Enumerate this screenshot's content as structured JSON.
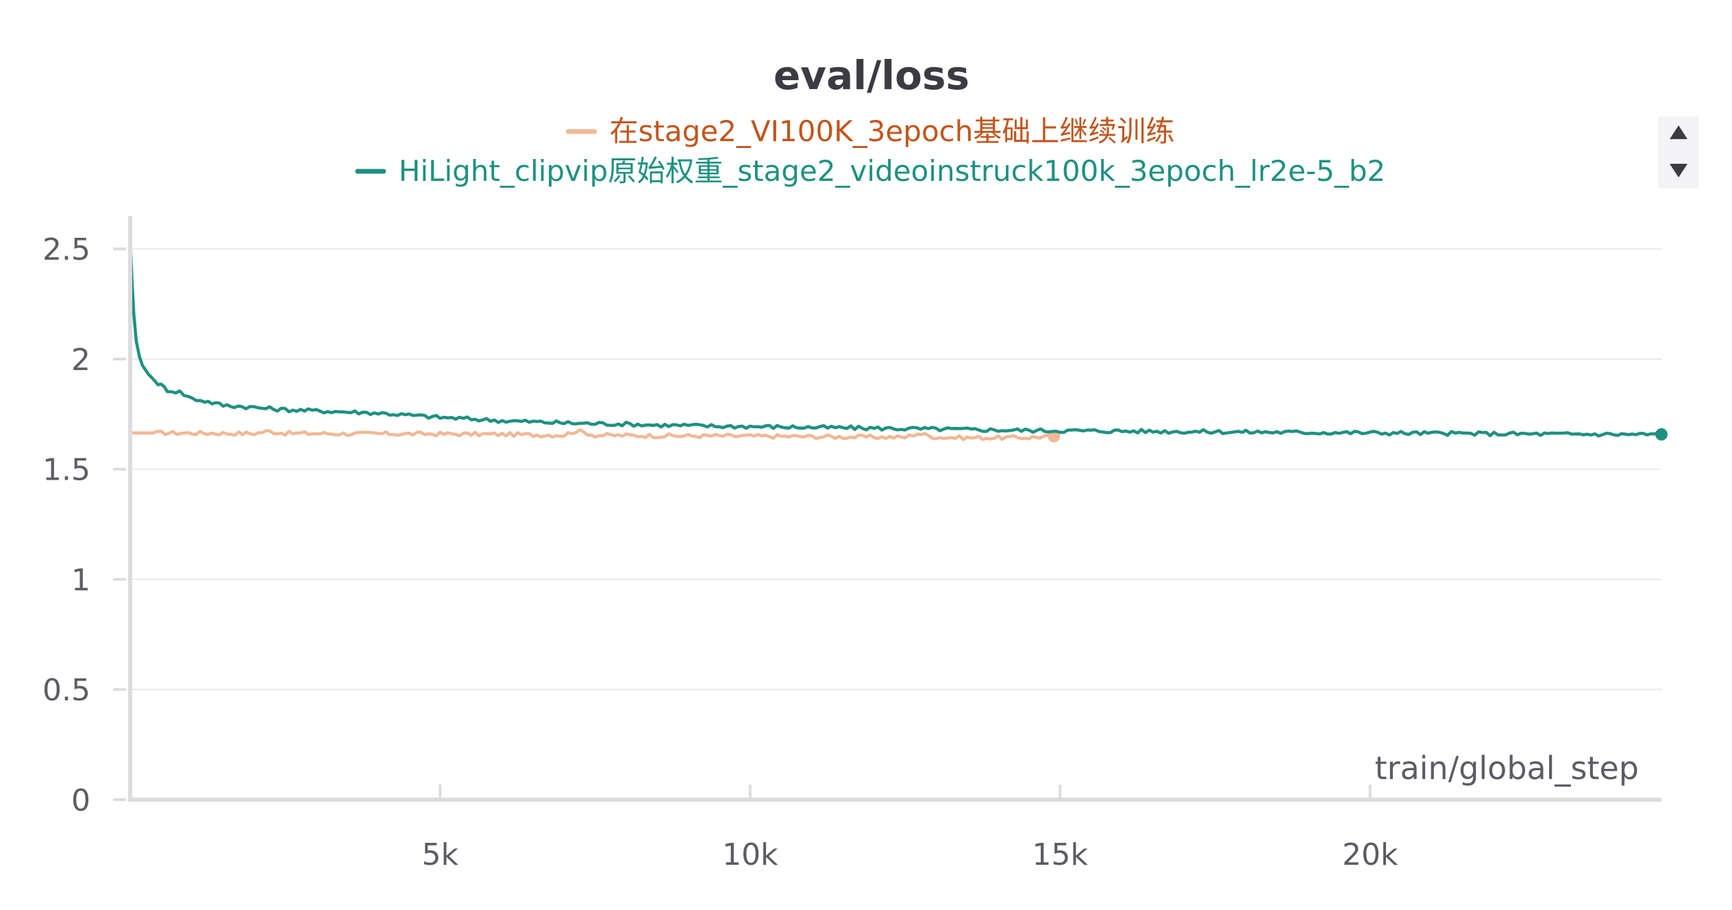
{
  "chart_data": {
    "type": "line",
    "title": "eval/loss",
    "xlabel": "train/global_step",
    "ylabel": "",
    "xlim": [
      0,
      24700
    ],
    "ylim": [
      0,
      2.65
    ],
    "x_ticks": [
      {
        "value": 5000,
        "label": "5k"
      },
      {
        "value": 10000,
        "label": "10k"
      },
      {
        "value": 15000,
        "label": "15k"
      },
      {
        "value": 20000,
        "label": "20k"
      }
    ],
    "y_ticks": [
      {
        "value": 0,
        "label": "0"
      },
      {
        "value": 0.5,
        "label": "0.5"
      },
      {
        "value": 1,
        "label": "1"
      },
      {
        "value": 1.5,
        "label": "1.5"
      },
      {
        "value": 2,
        "label": "2"
      },
      {
        "value": 2.5,
        "label": "2.5"
      }
    ],
    "grid": true,
    "legend_position": "top-center",
    "series": [
      {
        "name": "在stage2_VI100K_3epoch基础上继续训练",
        "color": "#f0b896",
        "label_color": "#c2551c",
        "x": [
          0,
          500,
          1000,
          1500,
          2000,
          2200,
          2500,
          3000,
          3500,
          4000,
          4500,
          5000,
          5500,
          6000,
          6500,
          7000,
          7200,
          7500,
          8000,
          8500,
          9000,
          9500,
          10000,
          10500,
          11000,
          11500,
          12000,
          12500,
          12700,
          13000,
          13500,
          14000,
          14500,
          14900
        ],
        "y": [
          1.665,
          1.665,
          1.664,
          1.663,
          1.662,
          1.672,
          1.663,
          1.662,
          1.661,
          1.661,
          1.66,
          1.66,
          1.659,
          1.658,
          1.656,
          1.655,
          1.675,
          1.654,
          1.653,
          1.652,
          1.651,
          1.651,
          1.65,
          1.649,
          1.648,
          1.647,
          1.646,
          1.645,
          1.663,
          1.645,
          1.643,
          1.643,
          1.644,
          1.65
        ]
      },
      {
        "name": "HiLight_clipvip原始权重_stage2_videoinstruck100k_3epoch_lr2e-5_b2",
        "color": "#1e9181",
        "label_color": "#1e9181",
        "x": [
          0,
          30,
          60,
          100,
          150,
          200,
          300,
          400,
          500,
          600,
          800,
          1000,
          1200,
          1500,
          1800,
          2000,
          2500,
          3000,
          3500,
          4000,
          4500,
          5000,
          5500,
          6000,
          6500,
          7000,
          7500,
          8000,
          8500,
          9000,
          9500,
          10000,
          10500,
          11000,
          11500,
          12000,
          12500,
          13000,
          13500,
          14000,
          14500,
          15000,
          15500,
          16000,
          16500,
          17000,
          17500,
          18000,
          18500,
          19000,
          19500,
          20000,
          20500,
          21000,
          21500,
          22000,
          22500,
          23000,
          23500,
          24000,
          24700
        ],
        "y": [
          2.55,
          2.35,
          2.2,
          2.08,
          2.01,
          1.97,
          1.93,
          1.9,
          1.88,
          1.86,
          1.85,
          1.82,
          1.81,
          1.79,
          1.785,
          1.78,
          1.77,
          1.765,
          1.76,
          1.755,
          1.745,
          1.735,
          1.728,
          1.72,
          1.715,
          1.71,
          1.707,
          1.705,
          1.7,
          1.698,
          1.695,
          1.694,
          1.692,
          1.69,
          1.688,
          1.686,
          1.684,
          1.682,
          1.68,
          1.678,
          1.676,
          1.675,
          1.674,
          1.673,
          1.672,
          1.671,
          1.67,
          1.669,
          1.668,
          1.667,
          1.666,
          1.665,
          1.664,
          1.663,
          1.662,
          1.661,
          1.66,
          1.659,
          1.659,
          1.658,
          1.658
        ]
      }
    ]
  }
}
